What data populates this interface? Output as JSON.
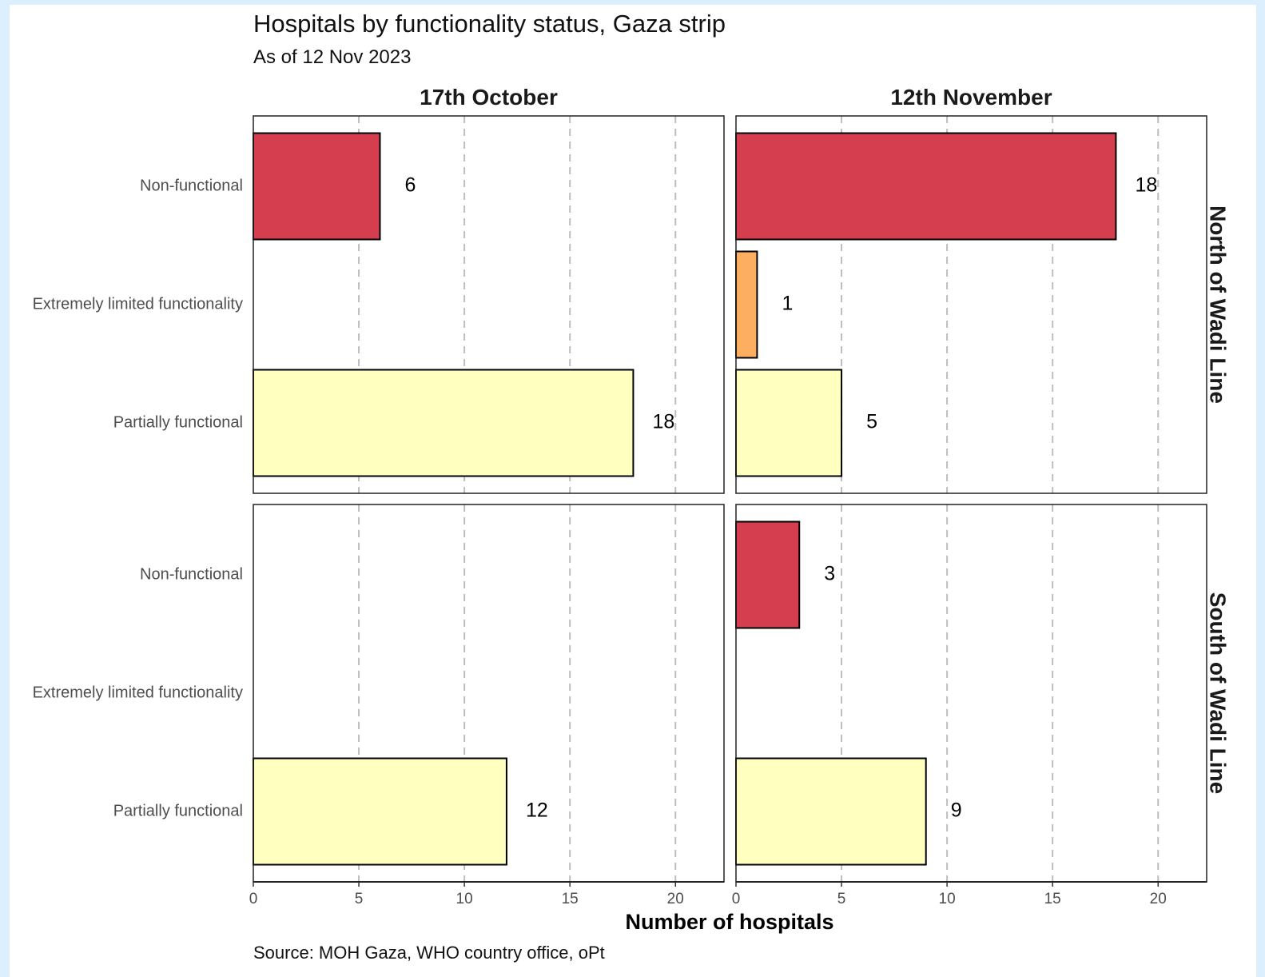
{
  "chart_data": {
    "type": "bar",
    "orientation": "horizontal",
    "title": "Hospitals by functionality status, Gaza strip",
    "subtitle": "As of 12 Nov 2023",
    "caption": "Source: MOH Gaza, WHO country office, oPt",
    "xlabel": "Number of hospitals",
    "ylabel": "",
    "xlim": [
      0,
      22.3
    ],
    "xticks": [
      0,
      5,
      10,
      15,
      20
    ],
    "grid": "vertical-dashed",
    "categories": [
      "Non-functional",
      "Extremely limited functionality",
      "Partially functional"
    ],
    "colors": {
      "Non-functional": "#d53e4f",
      "Extremely limited functionality": "#fdae61",
      "Partially functional": "#ffffbf"
    },
    "columns": [
      "17th October",
      "12th November"
    ],
    "rows": [
      "North of Wadi Line",
      "South of Wadi Line"
    ],
    "panels": [
      {
        "column": "17th October",
        "row": "North of Wadi Line",
        "values": [
          6,
          null,
          18
        ]
      },
      {
        "column": "12th November",
        "row": "North of Wadi Line",
        "values": [
          18,
          1,
          5
        ]
      },
      {
        "column": "17th October",
        "row": "South of Wadi Line",
        "values": [
          null,
          null,
          12
        ]
      },
      {
        "column": "12th November",
        "row": "South of Wadi Line",
        "values": [
          3,
          null,
          9
        ]
      }
    ]
  }
}
